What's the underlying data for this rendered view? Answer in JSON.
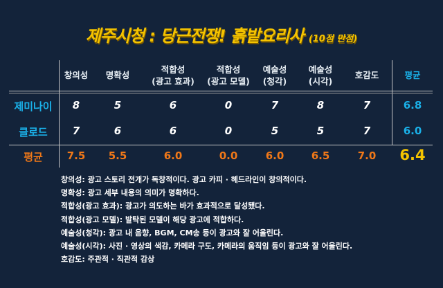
{
  "title": {
    "main": "제주시청 : 당근전쟁! 흙밭요리사",
    "sub": "(10점 만점)"
  },
  "table": {
    "columns": [
      {
        "line1": "창의성",
        "line2": ""
      },
      {
        "line1": "명확성",
        "line2": ""
      },
      {
        "line1": "적합성",
        "line2": "(광고 효과)"
      },
      {
        "line1": "적합성",
        "line2": "(광고 모델)"
      },
      {
        "line1": "예술성",
        "line2": "(청각)"
      },
      {
        "line1": "예술성",
        "line2": "(시각)"
      },
      {
        "line1": "호감도",
        "line2": ""
      }
    ],
    "average_header": "평균",
    "rows": [
      {
        "label": "제미나이",
        "scores": [
          "8",
          "5",
          "6",
          "0",
          "7",
          "8",
          "7"
        ],
        "average": "6.8"
      },
      {
        "label": "클로드",
        "scores": [
          "7",
          "6",
          "6",
          "0",
          "5",
          "5",
          "7"
        ],
        "average": "6.0"
      }
    ],
    "average_row": {
      "label": "평균",
      "values": [
        "7.5",
        "5.5",
        "6.0",
        "0.0",
        "6.0",
        "6.5",
        "7.0"
      ],
      "total": "6.4"
    }
  },
  "notes": [
    "창의성: 광고 스토리 전개가 독창적이다. 광고 카피 · 헤드라인이 창의적이다.",
    "명확성: 광고 세부 내용의 의미가 명확하다.",
    "적합성(광고 효과): 광고가 의도하는 바가 효과적으로 달성됐다.",
    "적합성(광고 모델): 발탁된 모델이 해당 광고에 적합하다.",
    "예술성(청각): 광고 내 음향, BGM, CM송 등이 광고와 잘 어울린다.",
    "예술성(시각): 사진 · 영상의 색감, 카메라 구도, 카메라의 움직임 등이 광고와 잘 어울린다.",
    "호감도: 주관적 · 직관적 감상"
  ],
  "colors": {
    "background": "#13233a",
    "title": "#f5c400",
    "label": "#1ab0e8",
    "average": "#f07818",
    "total": "#f5c400"
  }
}
